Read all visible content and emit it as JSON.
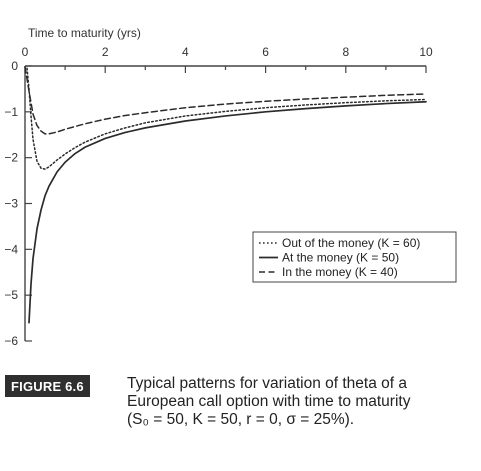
{
  "chart_data": {
    "type": "line",
    "xlabel": "Time to maturity (yrs)",
    "xlim": [
      0,
      10
    ],
    "ylim": [
      -6,
      0
    ],
    "x_ticks": [
      "0",
      "2",
      "4",
      "6",
      "8",
      "10"
    ],
    "y_ticks": [
      "0",
      "-1",
      "-2",
      "-3",
      "-4",
      "-5",
      "-6"
    ],
    "legend_position": "right-middle",
    "series": [
      {
        "name": "Out of the money (K = 60)",
        "style": "dotted",
        "x": [
          0.05,
          0.1,
          0.15,
          0.2,
          0.3,
          0.4,
          0.5,
          0.6,
          0.8,
          1.0,
          1.25,
          1.5,
          2,
          2.5,
          3,
          4,
          5,
          6,
          7,
          8,
          9,
          10
        ],
        "y": [
          -0.05,
          -0.5,
          -1.1,
          -1.6,
          -2.08,
          -2.23,
          -2.25,
          -2.2,
          -2.05,
          -1.92,
          -1.78,
          -1.66,
          -1.48,
          -1.35,
          -1.24,
          -1.09,
          -0.99,
          -0.91,
          -0.85,
          -0.8,
          -0.76,
          -0.73
        ]
      },
      {
        "name": "At the money (K = 50)",
        "style": "solid",
        "x": [
          0.1,
          0.15,
          0.2,
          0.3,
          0.4,
          0.5,
          0.6,
          0.8,
          1.0,
          1.25,
          1.5,
          2,
          2.5,
          3,
          4,
          5,
          6,
          7,
          8,
          9,
          10
        ],
        "y": [
          -5.6,
          -4.75,
          -4.2,
          -3.55,
          -3.14,
          -2.83,
          -2.62,
          -2.31,
          -2.1,
          -1.91,
          -1.77,
          -1.58,
          -1.45,
          -1.35,
          -1.2,
          -1.09,
          -1.0,
          -0.93,
          -0.87,
          -0.82,
          -0.78
        ]
      },
      {
        "name": "In the money (K = 40)",
        "style": "dashed",
        "x": [
          0,
          0.1,
          0.2,
          0.3,
          0.4,
          0.5,
          0.6,
          0.8,
          1.0,
          1.5,
          2,
          2.5,
          3,
          4,
          5,
          6,
          7,
          8,
          9,
          10
        ],
        "y": [
          -0.02,
          -0.55,
          -1.05,
          -1.3,
          -1.42,
          -1.48,
          -1.48,
          -1.44,
          -1.38,
          -1.26,
          -1.16,
          -1.08,
          -1.02,
          -0.91,
          -0.83,
          -0.77,
          -0.72,
          -0.68,
          -0.64,
          -0.61
        ]
      }
    ]
  },
  "caption": {
    "label": "FIGURE 6.6",
    "text": "Typical patterns for variation of theta of a European call option with time to maturity (S₀ = 50, K = 50, r = 0, σ = 25%)."
  },
  "colors": {
    "line": "#2b2b2b",
    "axis": "#444444",
    "figure_label_bg": "#2f2f2f"
  }
}
